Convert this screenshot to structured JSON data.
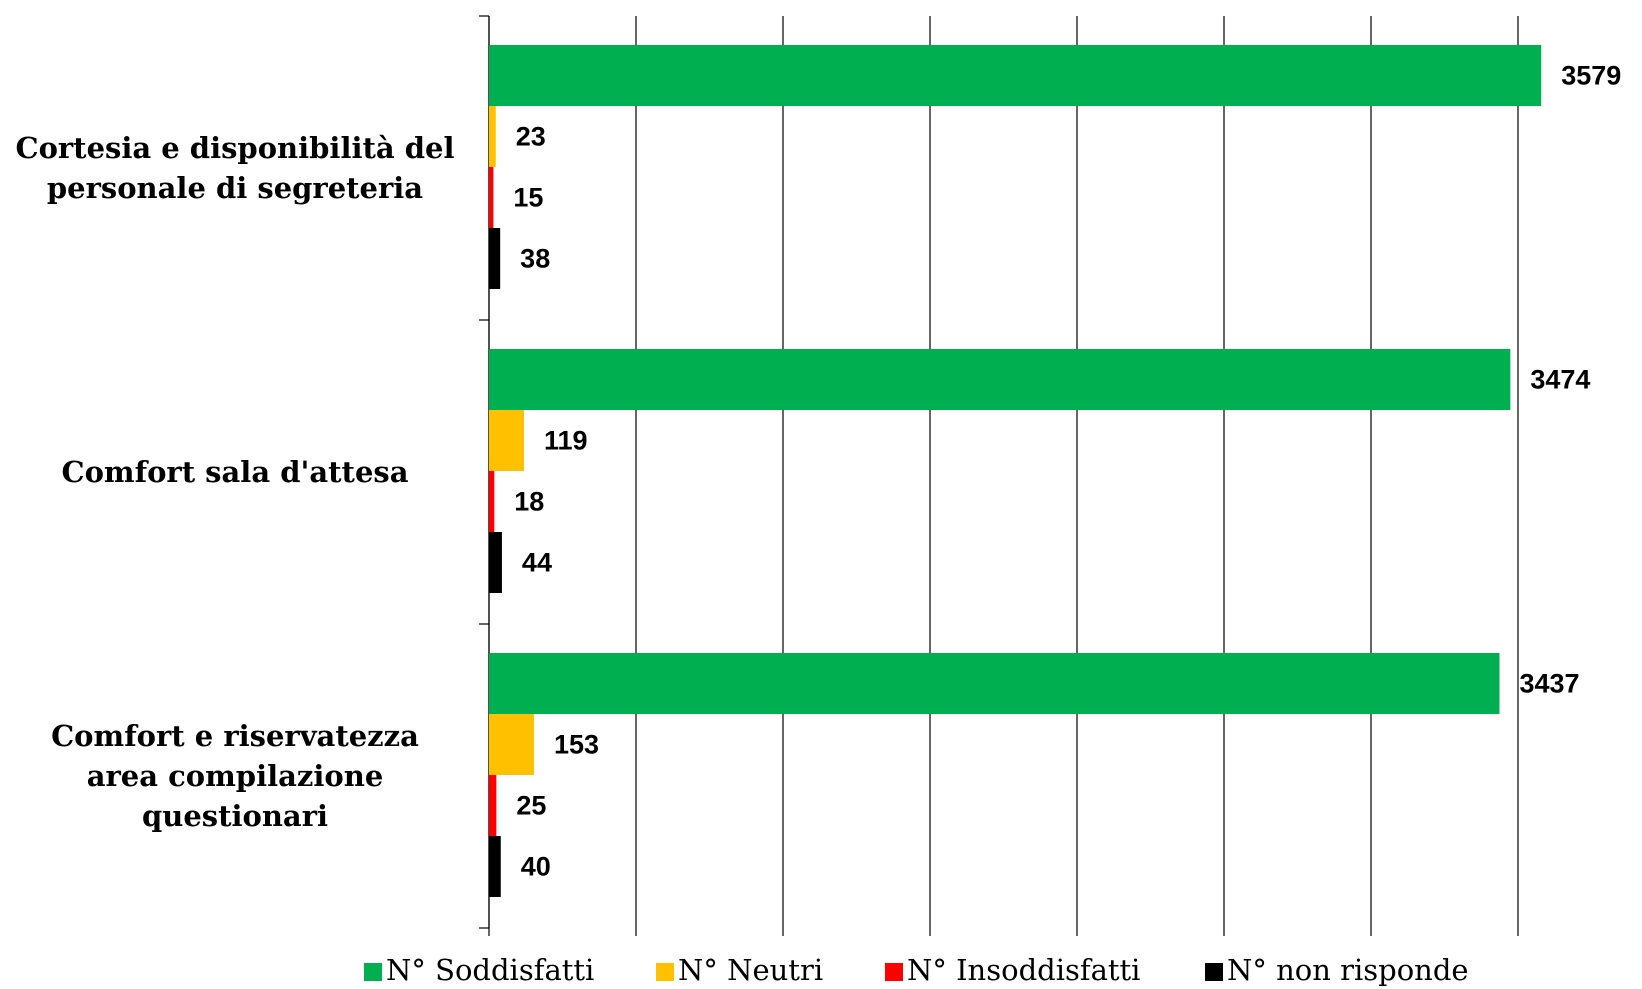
{
  "chart_data": {
    "type": "barh",
    "categories": [
      "Cortesia e disponibilità del personale di segreteria",
      "Comfort sala d'attesa",
      "Comfort e riservatezza area compilazione questionari"
    ],
    "series": [
      {
        "name": "N° Soddisfatti",
        "color": "#00b050",
        "values": [
          3579,
          3474,
          3437
        ]
      },
      {
        "name": "N° Neutri",
        "color": "#ffc000",
        "values": [
          23,
          119,
          153
        ]
      },
      {
        "name": "N° Insoddisfatti",
        "color": "#ff0000",
        "values": [
          15,
          18,
          25
        ]
      },
      {
        "name": "N° non risponde",
        "color": "#000000",
        "values": [
          38,
          44,
          40
        ]
      }
    ],
    "xlim": [
      0,
      3500
    ],
    "xticks": [
      0,
      500,
      1000,
      1500,
      2000,
      2500,
      3000,
      3500
    ],
    "grid": true,
    "legend": "bottom"
  }
}
